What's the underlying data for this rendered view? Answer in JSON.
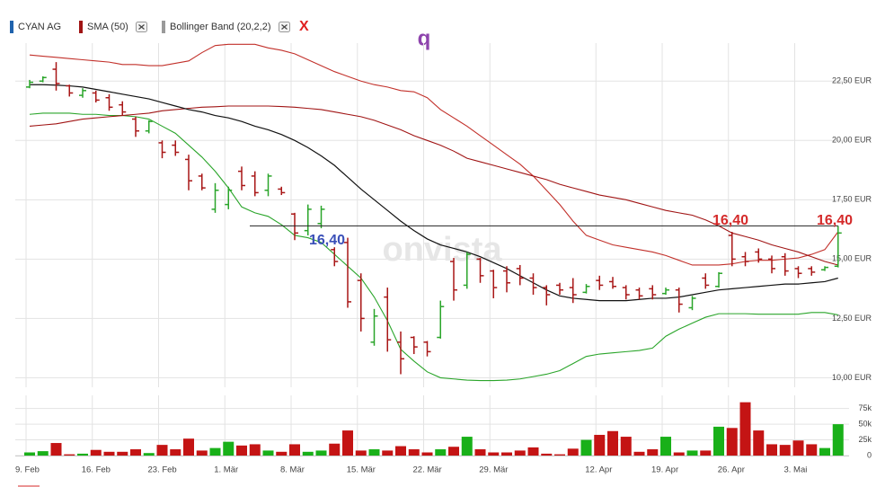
{
  "chart_data": {
    "type": "ohlc",
    "legend": {
      "remove_all": "X"
    },
    "watermark": "onvista",
    "marker_text": "q",
    "up_color": "#2aa52a",
    "down_color": "#a81616",
    "categories": [
      "9. Feb",
      null,
      null,
      null,
      null,
      "16. Feb",
      null,
      null,
      null,
      null,
      "23. Feb",
      null,
      null,
      null,
      null,
      "1. Mär",
      null,
      null,
      null,
      null,
      "8. Mär",
      null,
      null,
      null,
      null,
      "15. Mär",
      null,
      null,
      null,
      null,
      "22. Mär",
      null,
      null,
      null,
      null,
      "29. Mär",
      null,
      null,
      null,
      null,
      null,
      null,
      null,
      "12. Apr",
      null,
      null,
      null,
      null,
      "19. Apr",
      null,
      null,
      null,
      null,
      "26. Apr",
      null,
      null,
      null,
      null,
      "3. Mai",
      null,
      null,
      null
    ],
    "ylim": [
      9.6,
      24.1
    ],
    "yticks": [
      {
        "value": 10,
        "label": "10,00 EUR"
      },
      {
        "value": 12.5,
        "label": "12,50 EUR"
      },
      {
        "value": 15,
        "label": "15,00 EUR"
      },
      {
        "value": 17.5,
        "label": "17,50 EUR"
      },
      {
        "value": 20,
        "label": "20,00 EUR"
      },
      {
        "value": 22.5,
        "label": "22,50 EUR"
      }
    ],
    "vlim": [
      0,
      96000
    ],
    "vticks": [
      0,
      {
        "value": 25000,
        "label": "25k"
      },
      {
        "value": 50000,
        "label": "50k"
      },
      {
        "value": 75000,
        "label": "75k"
      }
    ],
    "grid": true,
    "series": [
      {
        "name": "CYAN AG",
        "color": "#1f63ad",
        "open": [
          22.25,
          22.5,
          23.0,
          22.3,
          21.9,
          22.0,
          21.8,
          21.5,
          20.9,
          20.4,
          19.9,
          19.8,
          19.2,
          18.5,
          17.1,
          17.3,
          18.7,
          18.5,
          17.9,
          17.95,
          16.9,
          16.2,
          16.5,
          15.4,
          15.7,
          14.1,
          11.5,
          13.4,
          11.5,
          11.7,
          11.5,
          11.7,
          14.9,
          13.9,
          15.0,
          14.5,
          14.5,
          14.6,
          14.2,
          13.8,
          13.9,
          13.8,
          13.6,
          14.1,
          14.05,
          13.8,
          13.7,
          13.75,
          13.55,
          13.7,
          12.95,
          14.2,
          13.85,
          16.0,
          15.1,
          15.3,
          15.0,
          15.1,
          14.6,
          14.6,
          14.55,
          14.7
        ],
        "high": [
          22.55,
          22.7,
          23.3,
          22.35,
          22.2,
          22.1,
          21.95,
          21.65,
          21.0,
          20.85,
          20.0,
          20.0,
          19.4,
          18.6,
          18.2,
          18.05,
          18.9,
          18.7,
          18.6,
          18.05,
          16.95,
          17.3,
          17.25,
          15.5,
          15.9,
          14.4,
          12.9,
          13.8,
          11.95,
          11.75,
          11.55,
          13.25,
          15.05,
          15.3,
          15.05,
          14.55,
          14.7,
          14.75,
          14.4,
          13.9,
          14.0,
          14.2,
          13.95,
          14.3,
          14.25,
          13.9,
          13.8,
          13.9,
          13.8,
          13.8,
          13.45,
          14.4,
          14.45,
          16.15,
          15.3,
          15.45,
          15.15,
          15.25,
          14.7,
          14.7,
          14.7,
          16.4
        ],
        "low": [
          22.2,
          22.45,
          22.1,
          21.85,
          21.8,
          21.6,
          21.25,
          21.05,
          20.15,
          20.3,
          19.25,
          19.35,
          17.9,
          17.9,
          16.95,
          17.1,
          17.9,
          17.65,
          17.65,
          17.7,
          15.8,
          16.0,
          16.3,
          14.7,
          12.95,
          11.95,
          11.35,
          11.1,
          10.15,
          11.0,
          10.9,
          11.65,
          13.25,
          13.75,
          14.0,
          13.35,
          13.6,
          13.9,
          13.5,
          13.05,
          13.5,
          13.15,
          13.55,
          13.7,
          13.75,
          13.3,
          13.3,
          13.3,
          13.5,
          12.75,
          12.85,
          13.75,
          13.8,
          14.7,
          14.7,
          14.85,
          14.4,
          14.3,
          14.2,
          14.3,
          14.5,
          14.65
        ],
        "close": [
          22.45,
          22.65,
          22.4,
          22.0,
          22.1,
          21.7,
          21.4,
          21.2,
          20.4,
          20.8,
          19.5,
          19.5,
          18.3,
          18.0,
          17.9,
          17.9,
          18.1,
          17.8,
          18.5,
          17.8,
          16.1,
          17.1,
          17.1,
          14.9,
          13.2,
          12.5,
          12.6,
          11.6,
          10.8,
          11.3,
          11.1,
          13.0,
          13.7,
          15.2,
          14.3,
          13.8,
          14.0,
          14.2,
          13.8,
          13.5,
          13.7,
          13.5,
          13.85,
          13.9,
          13.85,
          13.5,
          13.45,
          13.5,
          13.7,
          13.1,
          13.35,
          13.9,
          14.4,
          15.0,
          14.9,
          15.0,
          14.6,
          14.5,
          14.4,
          14.45,
          14.65,
          16.1
        ],
        "volume": [
          5000,
          7000,
          20000,
          2000,
          3000,
          9000,
          6000,
          6000,
          10000,
          4000,
          17000,
          10000,
          27000,
          8000,
          12000,
          22000,
          16000,
          18000,
          8000,
          6000,
          18000,
          6000,
          8000,
          19000,
          40000,
          8000,
          10000,
          8000,
          15000,
          10000,
          5000,
          10000,
          14000,
          30000,
          10000,
          5000,
          5000,
          8000,
          13000,
          3000,
          2000,
          11000,
          25000,
          33000,
          39000,
          30000,
          6000,
          10000,
          30000,
          5000,
          8000,
          8000,
          46000,
          44000,
          85000,
          40000,
          18000,
          17000,
          24000,
          18000,
          12000,
          50000
        ]
      },
      {
        "name": "SMA (50)",
        "color": "#a01414",
        "values": [
          20.6,
          20.65,
          20.7,
          20.8,
          20.9,
          20.95,
          21.0,
          21.05,
          21.1,
          21.15,
          21.25,
          21.3,
          21.35,
          21.4,
          21.42,
          21.45,
          21.45,
          21.45,
          21.45,
          21.43,
          21.4,
          21.35,
          21.3,
          21.2,
          21.1,
          21.0,
          20.85,
          20.65,
          20.45,
          20.2,
          20.0,
          19.8,
          19.55,
          19.25,
          19.1,
          18.95,
          18.8,
          18.65,
          18.5,
          18.35,
          18.15,
          18.0,
          17.85,
          17.7,
          17.6,
          17.5,
          17.35,
          17.2,
          17.05,
          16.95,
          16.85,
          16.65,
          16.4,
          16.1,
          15.95,
          15.8,
          15.6,
          15.45,
          15.3,
          15.1,
          14.9,
          14.75
        ]
      },
      {
        "name": "Bollinger Band (20,2,2)",
        "color": "#9a9a9a",
        "upper_color": "#c2302a",
        "middle_color": "#111111",
        "lower_color": "#2aa52a",
        "upper": [
          23.6,
          23.55,
          23.5,
          23.45,
          23.4,
          23.35,
          23.3,
          23.2,
          23.2,
          23.15,
          23.15,
          23.25,
          23.35,
          23.7,
          24.0,
          24.05,
          24.05,
          24.05,
          23.9,
          23.8,
          23.65,
          23.4,
          23.15,
          22.9,
          22.7,
          22.5,
          22.35,
          22.25,
          22.1,
          22.05,
          21.8,
          21.3,
          20.95,
          20.6,
          20.2,
          19.8,
          19.4,
          19.0,
          18.5,
          17.9,
          17.3,
          16.6,
          16.0,
          15.8,
          15.6,
          15.5,
          15.4,
          15.3,
          15.15,
          14.95,
          14.75,
          14.75,
          14.75,
          14.8,
          14.9,
          14.95,
          14.95,
          15.0,
          15.05,
          15.2,
          15.4,
          16.15
        ],
        "middle": [
          22.35,
          22.35,
          22.33,
          22.3,
          22.25,
          22.15,
          22.05,
          21.95,
          21.85,
          21.75,
          21.6,
          21.45,
          21.3,
          21.2,
          21.05,
          20.95,
          20.8,
          20.6,
          20.45,
          20.25,
          20.0,
          19.7,
          19.35,
          18.95,
          18.45,
          17.95,
          17.5,
          17.05,
          16.6,
          16.2,
          15.85,
          15.6,
          15.45,
          15.3,
          15.1,
          14.85,
          14.6,
          14.3,
          14.0,
          13.7,
          13.45,
          13.35,
          13.3,
          13.25,
          13.25,
          13.25,
          13.3,
          13.35,
          13.35,
          13.4,
          13.5,
          13.6,
          13.7,
          13.75,
          13.8,
          13.85,
          13.9,
          13.95,
          13.95,
          14.0,
          14.05,
          14.2
        ],
        "lower": [
          21.1,
          21.15,
          21.15,
          21.15,
          21.1,
          21.1,
          21.05,
          21.05,
          21.0,
          20.9,
          20.6,
          20.3,
          19.8,
          19.3,
          18.7,
          18.0,
          17.2,
          16.95,
          16.8,
          16.45,
          16.0,
          15.9,
          15.7,
          15.2,
          14.7,
          14.2,
          13.4,
          12.4,
          11.2,
          10.7,
          10.25,
          10.0,
          9.95,
          9.9,
          9.88,
          9.88,
          9.9,
          9.95,
          10.05,
          10.15,
          10.3,
          10.6,
          10.9,
          11.0,
          11.05,
          11.1,
          11.15,
          11.25,
          11.75,
          12.05,
          12.3,
          12.55,
          12.7,
          12.7,
          12.7,
          12.68,
          12.68,
          12.68,
          12.68,
          12.75,
          12.75,
          12.65
        ]
      }
    ],
    "hline": {
      "value": 16.4,
      "color": "#222222"
    },
    "annotations": [
      {
        "text": "16,40",
        "color": "#3a4fb8"
      },
      {
        "text": "16,40",
        "color": "#d42a2a"
      },
      {
        "text": "16,40",
        "color": "#d42a2a"
      }
    ]
  }
}
